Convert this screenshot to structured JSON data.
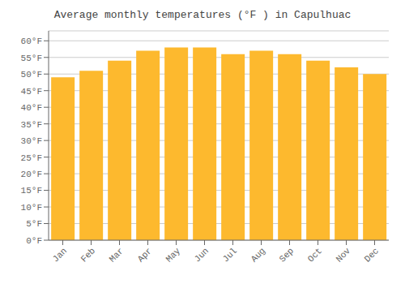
{
  "chart_data": {
    "type": "bar",
    "title": "Average monthly temperatures (°F ) in Capulhuac",
    "categories": [
      "Jan",
      "Feb",
      "Mar",
      "Apr",
      "May",
      "Jun",
      "Jul",
      "Aug",
      "Sep",
      "Oct",
      "Nov",
      "Dec"
    ],
    "values": [
      49.0,
      51.0,
      54.0,
      57.0,
      58.0,
      58.0,
      56.0,
      57.0,
      56.0,
      54.0,
      52.0,
      50.0
    ],
    "color": "#FDB92E",
    "ylim": [
      0,
      63
    ],
    "yticks": [
      {
        "value": 0,
        "label": "0°F"
      },
      {
        "value": 5,
        "label": "5°F"
      },
      {
        "value": 10,
        "label": "10°F"
      },
      {
        "value": 15,
        "label": "15°F"
      },
      {
        "value": 20,
        "label": "20°F"
      },
      {
        "value": 25,
        "label": "25°F"
      },
      {
        "value": 30,
        "label": "30°F"
      },
      {
        "value": 35,
        "label": "35°F"
      },
      {
        "value": 40,
        "label": "40°F"
      },
      {
        "value": 45,
        "label": "45°F"
      },
      {
        "value": 50,
        "label": "50°F"
      },
      {
        "value": 55,
        "label": "55°F"
      },
      {
        "value": 60,
        "label": "60°F"
      }
    ],
    "grid": true
  }
}
